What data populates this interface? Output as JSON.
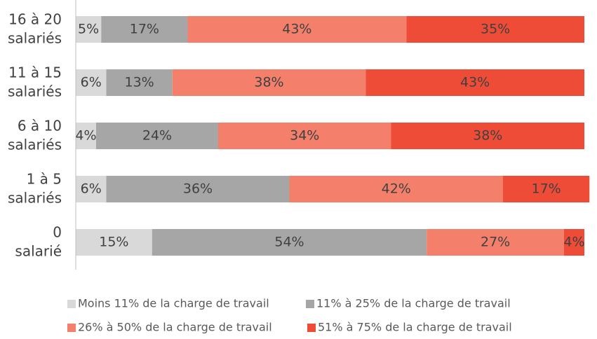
{
  "chart_data": {
    "type": "stacked-bar-horizontal",
    "categories": [
      [
        "16 à 20",
        "salariés"
      ],
      [
        "11 à 15",
        "salariés"
      ],
      [
        "6 à 10",
        "salariés"
      ],
      [
        "1 à 5",
        "salariés"
      ],
      [
        "0",
        "salarié"
      ]
    ],
    "xlim": [
      0,
      100
    ],
    "series": [
      {
        "name": "Moins 11% de la charge de travail",
        "color": "#d9d9d9",
        "values": [
          5,
          6,
          4,
          6,
          15
        ],
        "value_labels": [
          "5%",
          "6%",
          "4%",
          "6%",
          "15%"
        ]
      },
      {
        "name": "11% à 25% de la charge de travail",
        "color": "#a6a6a6",
        "values": [
          17,
          13,
          24,
          36,
          54
        ],
        "value_labels": [
          "17%",
          "13%",
          "24%",
          "36%",
          "54%"
        ]
      },
      {
        "name": "26% à 50% de la charge de travail",
        "color": "#f4806c",
        "values": [
          43,
          38,
          34,
          42,
          27
        ],
        "value_labels": [
          "43%",
          "38%",
          "34%",
          "42%",
          "27%"
        ]
      },
      {
        "name": "51% à 75% de la charge de travail",
        "color": "#ef4c38",
        "values": [
          35,
          43,
          38,
          17,
          4
        ],
        "value_labels": [
          "35%",
          "43%",
          "38%",
          "17%",
          "4%"
        ]
      }
    ],
    "legend": "bottom"
  }
}
